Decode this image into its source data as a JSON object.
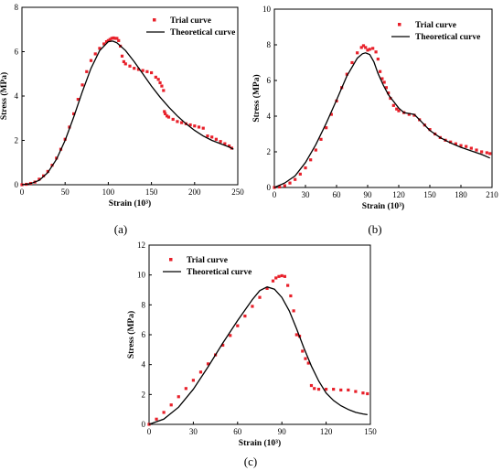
{
  "figure": {
    "panel_labels": [
      "(a)",
      "(b)",
      "(c)"
    ]
  },
  "colors": {
    "trial": "#e8202a",
    "theory": "#000000"
  },
  "chart_data": [
    {
      "type": "line",
      "panel": "(a)",
      "xlabel": "Strain (10³)",
      "ylabel": "Stress (MPa)",
      "xlim": [
        0,
        250
      ],
      "ylim": [
        0,
        8
      ],
      "xticks": [
        0,
        50,
        100,
        150,
        200,
        250
      ],
      "yticks": [
        0,
        2,
        4,
        6,
        8
      ],
      "legend": "top-right",
      "series": [
        {
          "name": "Trial curve",
          "style": "markers",
          "color": "#e8202a",
          "x": [
            0,
            5,
            10,
            15,
            20,
            25,
            30,
            35,
            40,
            45,
            50,
            55,
            60,
            65,
            70,
            75,
            80,
            85,
            90,
            95,
            98,
            100,
            102,
            104,
            106,
            108,
            110,
            112,
            114,
            116,
            118,
            120,
            125,
            130,
            135,
            140,
            145,
            150,
            155,
            158,
            160,
            162,
            164,
            165,
            166,
            168,
            170,
            175,
            180,
            185,
            190,
            195,
            200,
            205,
            210,
            215,
            220,
            225,
            230,
            235,
            240,
            243
          ],
          "y": [
            0,
            0.02,
            0.06,
            0.12,
            0.25,
            0.4,
            0.6,
            0.88,
            1.2,
            1.6,
            2.05,
            2.6,
            3.2,
            3.85,
            4.5,
            5.1,
            5.6,
            5.9,
            6.15,
            6.35,
            6.45,
            6.5,
            6.55,
            6.6,
            6.62,
            6.6,
            6.6,
            6.5,
            6.25,
            5.8,
            5.55,
            5.45,
            5.35,
            5.25,
            5.2,
            5.15,
            5.1,
            5.05,
            4.85,
            4.75,
            4.6,
            4.45,
            4.25,
            3.3,
            3.2,
            3.1,
            3.05,
            2.95,
            2.85,
            2.8,
            2.75,
            2.7,
            2.65,
            2.6,
            2.55,
            2.2,
            2.15,
            2.05,
            1.95,
            1.85,
            1.75,
            1.65
          ]
        },
        {
          "name": "Theoretical curve",
          "style": "line",
          "color": "#000000",
          "x": [
            0,
            10,
            20,
            30,
            40,
            50,
            60,
            70,
            80,
            90,
            100,
            105,
            110,
            120,
            130,
            140,
            150,
            160,
            170,
            180,
            190,
            200,
            210,
            220,
            230,
            240,
            245
          ],
          "y": [
            0,
            0.05,
            0.2,
            0.55,
            1.15,
            2.0,
            3.05,
            4.2,
            5.25,
            6.05,
            6.45,
            6.48,
            6.4,
            6.05,
            5.55,
            5.0,
            4.45,
            3.95,
            3.5,
            3.1,
            2.75,
            2.45,
            2.2,
            2.0,
            1.85,
            1.7,
            1.6
          ]
        }
      ]
    },
    {
      "type": "line",
      "panel": "(b)",
      "xlabel": "Strain (10³)",
      "ylabel": "Stress (MPa)",
      "xlim": [
        0,
        210
      ],
      "ylim": [
        0,
        10
      ],
      "xticks": [
        0,
        30,
        60,
        90,
        120,
        150,
        180,
        210
      ],
      "yticks": [
        0,
        2,
        4,
        6,
        8,
        10
      ],
      "legend": "top-right",
      "series": [
        {
          "name": "Trial curve",
          "style": "markers",
          "color": "#e8202a",
          "x": [
            0,
            5,
            10,
            15,
            20,
            25,
            30,
            35,
            40,
            45,
            50,
            55,
            60,
            65,
            70,
            75,
            80,
            84,
            86,
            88,
            90,
            92,
            95,
            98,
            100,
            102,
            104,
            106,
            108,
            110,
            112,
            115,
            118,
            120,
            125,
            130,
            135,
            140,
            145,
            150,
            155,
            160,
            165,
            170,
            175,
            180,
            185,
            190,
            195,
            200,
            205,
            208
          ],
          "y": [
            0,
            0.03,
            0.1,
            0.25,
            0.45,
            0.75,
            1.1,
            1.55,
            2.1,
            2.7,
            3.35,
            4.1,
            4.85,
            5.6,
            6.35,
            7.0,
            7.55,
            7.85,
            7.95,
            7.85,
            7.7,
            7.75,
            7.8,
            7.6,
            7.2,
            6.5,
            6.1,
            5.9,
            5.6,
            5.3,
            5.0,
            4.6,
            4.4,
            4.3,
            4.2,
            4.1,
            4.05,
            3.8,
            3.5,
            3.25,
            3.0,
            2.8,
            2.65,
            2.55,
            2.45,
            2.35,
            2.3,
            2.2,
            2.1,
            2.0,
            1.95,
            1.9
          ]
        },
        {
          "name": "Theoretical curve",
          "style": "line",
          "color": "#000000",
          "x": [
            0,
            10,
            20,
            30,
            40,
            50,
            60,
            70,
            80,
            85,
            88,
            92,
            96,
            100,
            105,
            110,
            120,
            125,
            130,
            135,
            140,
            150,
            160,
            170,
            180,
            190,
            200,
            208
          ],
          "y": [
            0,
            0.25,
            0.65,
            1.4,
            2.4,
            3.6,
            4.9,
            6.25,
            7.25,
            7.5,
            7.55,
            7.45,
            7.05,
            6.4,
            5.75,
            5.2,
            4.45,
            4.2,
            4.15,
            4.1,
            3.8,
            3.2,
            2.8,
            2.5,
            2.25,
            2.05,
            1.85,
            1.65
          ]
        }
      ]
    },
    {
      "type": "line",
      "panel": "(c)",
      "xlabel": "Strain (10³)",
      "ylabel": "Stress (MPa)",
      "xlim": [
        0,
        150
      ],
      "ylim": [
        0,
        12
      ],
      "xticks": [
        0,
        30,
        60,
        90,
        120,
        150
      ],
      "yticks": [
        0,
        2,
        4,
        6,
        8,
        10,
        12
      ],
      "legend": "top-left",
      "series": [
        {
          "name": "Trial curve",
          "style": "markers",
          "color": "#e8202a",
          "x": [
            0,
            5,
            10,
            15,
            20,
            25,
            30,
            35,
            40,
            45,
            50,
            55,
            60,
            65,
            70,
            75,
            80,
            84,
            86,
            88,
            90,
            92,
            94,
            96,
            98,
            100,
            102,
            104,
            106,
            108,
            110,
            112,
            115,
            120,
            125,
            130,
            135,
            140,
            145,
            148
          ],
          "y": [
            0,
            0.35,
            0.8,
            1.3,
            1.85,
            2.4,
            2.95,
            3.5,
            4.05,
            4.65,
            5.3,
            5.95,
            6.6,
            7.25,
            7.9,
            8.5,
            9.1,
            9.6,
            9.8,
            9.9,
            9.95,
            9.9,
            9.3,
            8.6,
            7.6,
            6.0,
            5.9,
            4.9,
            4.4,
            4.1,
            2.6,
            2.4,
            2.35,
            2.35,
            2.35,
            2.3,
            2.3,
            2.2,
            2.1,
            2.05
          ]
        },
        {
          "name": "Theoretical curve",
          "style": "line",
          "color": "#000000",
          "x": [
            0,
            10,
            20,
            30,
            40,
            50,
            60,
            70,
            75,
            80,
            85,
            90,
            95,
            100,
            105,
            110,
            115,
            120,
            125,
            130,
            135,
            140,
            145,
            148
          ],
          "y": [
            0,
            0.35,
            1.15,
            2.35,
            3.85,
            5.45,
            6.95,
            8.35,
            8.95,
            9.2,
            9.05,
            8.5,
            7.6,
            6.4,
            5.1,
            3.9,
            2.9,
            2.1,
            1.6,
            1.25,
            1.0,
            0.8,
            0.7,
            0.65
          ]
        }
      ]
    }
  ]
}
